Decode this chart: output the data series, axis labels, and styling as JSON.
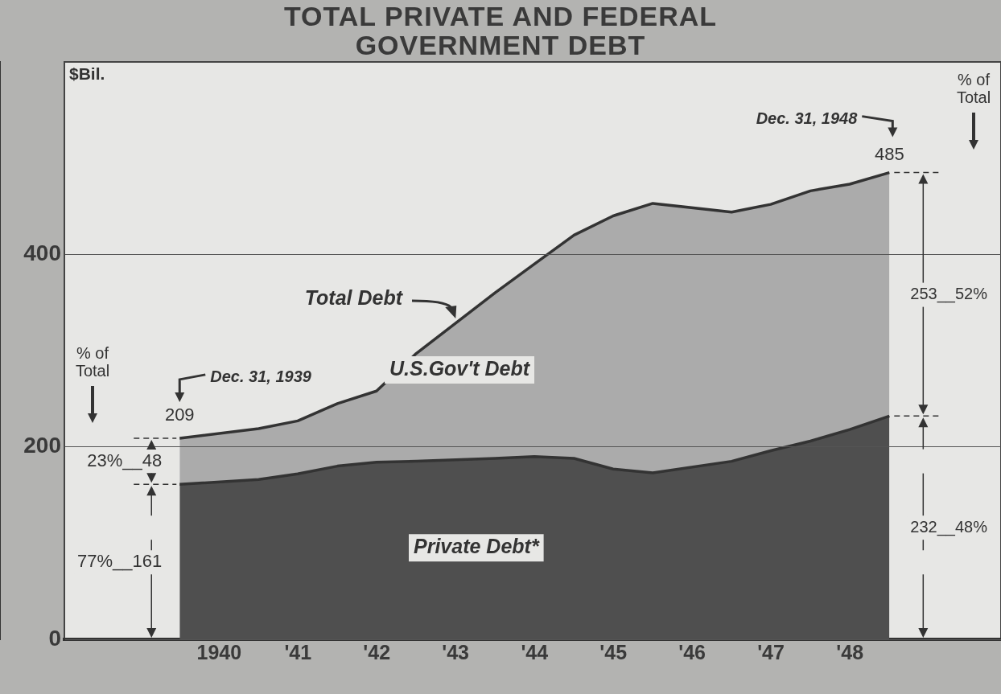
{
  "chart_data": {
    "type": "area",
    "title": "TOTAL PRIVATE AND FEDERAL GOVERNMENT DEBT",
    "ylabel": "$Bil.",
    "x": [
      "1939-12-31",
      "1940-12-31",
      "1941-06-30",
      "1941-12-31",
      "1942-06-30",
      "1942-12-31",
      "1943-12-31",
      "1944-06-30",
      "1944-12-31",
      "1945-06-30",
      "1945-12-31",
      "1946-12-31",
      "1947-06-30",
      "1947-12-31",
      "1948-06-30",
      "1948-12-31"
    ],
    "series": [
      {
        "name": "Private Debt*",
        "color": "#4f4f4f",
        "values": [
          161,
          166,
          172,
          180,
          184,
          185,
          188,
          190,
          188,
          177,
          173,
          185,
          196,
          206,
          218,
          232
        ]
      },
      {
        "name": "U.S.Gov't Debt",
        "color": "#ababab",
        "values": [
          48,
          53,
          55,
          65,
          74,
          112,
          172,
          200,
          232,
          263,
          280,
          259,
          256,
          260,
          255,
          253
        ]
      }
    ],
    "stacked": true,
    "xlim": [
      "1938-07-15",
      "1950-06-01"
    ],
    "xticks": [
      {
        "value": "1940-07-01",
        "label": "1940"
      },
      {
        "value": "1941-07-01",
        "label": "'41"
      },
      {
        "value": "1942-07-01",
        "label": "'42"
      },
      {
        "value": "1943-07-01",
        "label": "'43"
      },
      {
        "value": "1944-07-01",
        "label": "'44"
      },
      {
        "value": "1945-07-01",
        "label": "'45"
      },
      {
        "value": "1946-07-01",
        "label": "'46"
      },
      {
        "value": "1947-07-01",
        "label": "'47"
      },
      {
        "value": "1948-07-01",
        "label": "'48"
      }
    ],
    "ylim": [
      0,
      600
    ],
    "yticks": [
      0,
      200,
      400
    ],
    "grid": "y",
    "legend": false,
    "marker": "none",
    "annotations": [
      "Total Debt",
      "Dec. 31, 1939",
      {
        "text": "209",
        "x": "1939-12-31",
        "y": 209
      },
      "Dec. 31, 1948",
      {
        "text": "485",
        "x": "1948-12-31",
        "y": 485
      },
      "% of Total",
      "% of Total",
      {
        "text": "23%__48",
        "x": "1939-12-31",
        "y": 185
      },
      {
        "text": "77%__161",
        "x": "1939-12-31",
        "y": 80
      },
      {
        "text": "253__52%",
        "x": "1948-12-31",
        "y": 358
      },
      {
        "text": "232__48%",
        "x": "1948-12-31",
        "y": 116
      }
    ]
  }
}
